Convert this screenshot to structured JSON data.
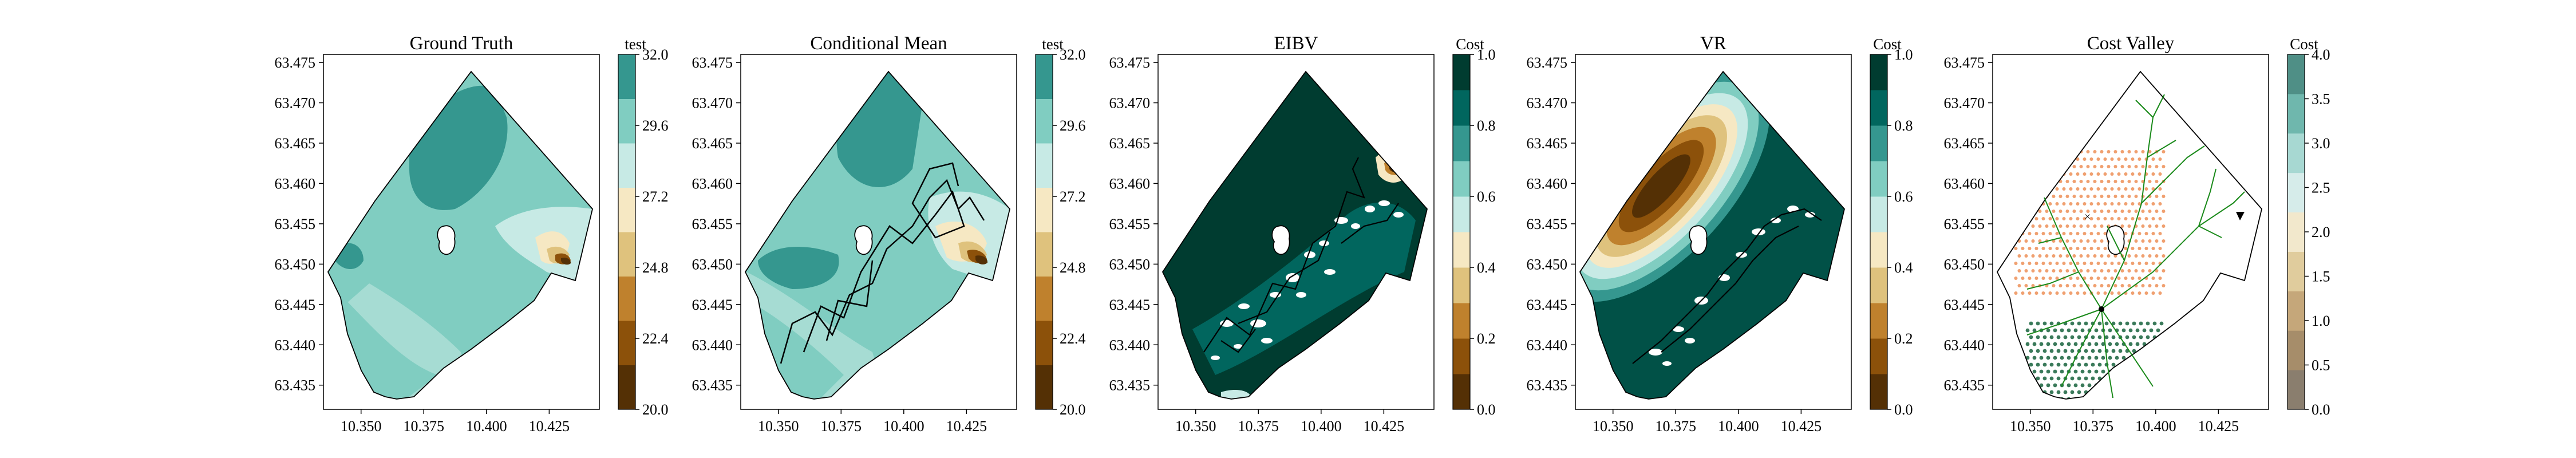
{
  "chart_data": [
    {
      "type": "heatmap",
      "title": "Ground Truth",
      "colorbar_label": "test",
      "colorbar_ticks": [
        "20.0",
        "22.4",
        "24.8",
        "27.2",
        "29.6",
        "32.0"
      ],
      "colorbar_range": [
        20.0,
        32.0
      ],
      "x_ticks": [
        "10.350",
        "10.375",
        "10.400",
        "10.425"
      ],
      "y_ticks": [
        "63.435",
        "63.440",
        "63.445",
        "63.450",
        "63.455",
        "63.460",
        "63.465",
        "63.470",
        "63.475"
      ],
      "xlim": [
        10.335,
        10.445
      ],
      "ylim": [
        63.432,
        63.476
      ]
    },
    {
      "type": "heatmap",
      "title": "Conditional Mean",
      "colorbar_label": "test",
      "colorbar_ticks": [
        "20.0",
        "22.4",
        "24.8",
        "27.2",
        "29.6",
        "32.0"
      ],
      "colorbar_range": [
        20.0,
        32.0
      ],
      "x_ticks": [
        "10.350",
        "10.375",
        "10.400",
        "10.425"
      ],
      "y_ticks": [
        "63.435",
        "63.440",
        "63.445",
        "63.450",
        "63.455",
        "63.460",
        "63.465",
        "63.470",
        "63.475"
      ],
      "xlim": [
        10.335,
        10.445
      ],
      "ylim": [
        63.432,
        63.476
      ]
    },
    {
      "type": "heatmap",
      "title": "EIBV",
      "colorbar_label": "Cost",
      "colorbar_ticks": [
        "0.0",
        "0.2",
        "0.4",
        "0.6",
        "0.8",
        "1.0"
      ],
      "colorbar_range": [
        0.0,
        1.0
      ],
      "x_ticks": [
        "10.350",
        "10.375",
        "10.400",
        "10.425"
      ],
      "y_ticks": [
        "63.435",
        "63.440",
        "63.445",
        "63.450",
        "63.455",
        "63.460",
        "63.465",
        "63.470",
        "63.475"
      ],
      "xlim": [
        10.335,
        10.445
      ],
      "ylim": [
        63.432,
        63.476
      ]
    },
    {
      "type": "heatmap",
      "title": "VR",
      "colorbar_label": "Cost",
      "colorbar_ticks": [
        "0.0",
        "0.2",
        "0.4",
        "0.6",
        "0.8",
        "1.0"
      ],
      "colorbar_range": [
        0.0,
        1.0
      ],
      "x_ticks": [
        "10.350",
        "10.375",
        "10.400",
        "10.425"
      ],
      "y_ticks": [
        "63.435",
        "63.440",
        "63.445",
        "63.450",
        "63.455",
        "63.460",
        "63.465",
        "63.470",
        "63.475"
      ],
      "xlim": [
        10.335,
        10.445
      ],
      "ylim": [
        63.432,
        63.476
      ]
    },
    {
      "type": "heatmap",
      "title": "Cost Valley",
      "colorbar_label": "Cost",
      "colorbar_ticks": [
        "0.0",
        "0.5",
        "1.0",
        "1.5",
        "2.0",
        "2.5",
        "3.0",
        "3.5",
        "4.0"
      ],
      "colorbar_range": [
        0.0,
        4.0
      ],
      "x_ticks": [
        "10.350",
        "10.375",
        "10.400",
        "10.425"
      ],
      "y_ticks": [
        "63.435",
        "63.440",
        "63.445",
        "63.450",
        "63.455",
        "63.460",
        "63.465",
        "63.470",
        "63.475"
      ],
      "xlim": [
        10.335,
        10.445
      ],
      "ylim": [
        63.432,
        63.476
      ]
    }
  ],
  "colors": {
    "brbg_8": [
      "#543005",
      "#8c510a",
      "#bf812d",
      "#dfc27d",
      "#f6e8c3",
      "#c7eae5",
      "#80cdc1",
      "#35978f"
    ],
    "brbg_deep": [
      "#01665e",
      "#003c30"
    ],
    "cost_valley": [
      "#8a7e6e",
      "#a68d6a",
      "#c5a77a",
      "#e0cc9d",
      "#f2e8cc",
      "#d6ecea",
      "#a7d8d2",
      "#6fb7ad",
      "#4f8f86"
    ],
    "path": "#000000",
    "tree": "#1a8a1a",
    "dots_orange": "#f0a070",
    "dots_green": "#3a7a5a"
  }
}
